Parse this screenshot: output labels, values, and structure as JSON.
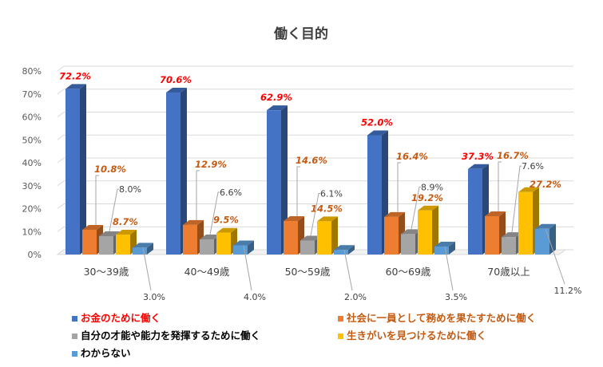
{
  "chart_data": {
    "type": "bar",
    "title": "働く目的",
    "categories": [
      "30～39歳",
      "40～49歳",
      "50～59歳",
      "60～69歳",
      "70歳以上"
    ],
    "ylim": [
      0,
      80
    ],
    "yticks": [
      "0%",
      "10%",
      "20%",
      "30%",
      "40%",
      "50%",
      "60%",
      "70%",
      "80%"
    ],
    "grid": true,
    "legend_position": "bottom",
    "series": [
      {
        "name": "お金のために働く",
        "color": "#4472C4",
        "label_color": "#FF0000",
        "values": [
          72.2,
          70.6,
          62.9,
          52.0,
          37.3
        ],
        "labels": [
          "72.2%",
          "70.6%",
          "62.9%",
          "52.0%",
          "37.3%"
        ]
      },
      {
        "name": "社会に一員として務めを果たすために働く",
        "color": "#ED7D31",
        "label_color": "#C55A11",
        "values": [
          10.8,
          12.9,
          14.6,
          16.4,
          16.7
        ],
        "labels": [
          "10.8%",
          "12.9%",
          "14.6%",
          "16.4%",
          "16.7%"
        ]
      },
      {
        "name": "自分の才能や能力を発揮するために働く",
        "color": "#A5A5A5",
        "label_color": "#404040",
        "values": [
          8.0,
          6.6,
          6.1,
          8.9,
          7.6
        ],
        "labels": [
          "8.0%",
          "6.6%",
          "6.1%",
          "8.9%",
          "7.6%"
        ]
      },
      {
        "name": "生きがいを見つけるために働く",
        "color": "#FFC000",
        "label_color": "#C55A11",
        "values": [
          8.7,
          9.5,
          14.5,
          19.2,
          27.2
        ],
        "labels": [
          "8.7%",
          "9.5%",
          "14.5%",
          "19.2%",
          "27.2%"
        ]
      },
      {
        "name": "わからない",
        "color": "#5B9BD5",
        "label_color": "#404040",
        "values": [
          3.0,
          4.0,
          2.0,
          3.5,
          11.2
        ],
        "labels": [
          "3.0%",
          "4.0%",
          "2.0%",
          "3.5%",
          "11.2%"
        ]
      }
    ]
  }
}
